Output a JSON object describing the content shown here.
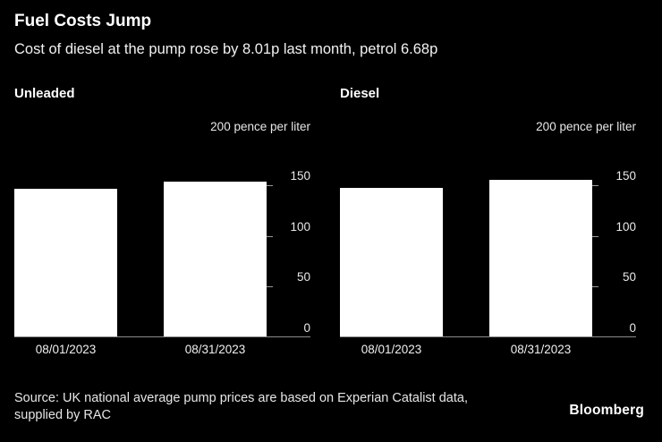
{
  "header": {
    "title": "Fuel Costs Jump",
    "subtitle": "Cost of diesel at the pump rose by 8.01p last month, petrol 6.68p"
  },
  "chart_data": [
    {
      "type": "bar",
      "title": "Unleaded",
      "categories": [
        "08/01/2023",
        "08/31/2023"
      ],
      "values": [
        146.0,
        152.7
      ],
      "unit_label": "200 pence per liter",
      "ylabel": "pence per liter",
      "ylim": [
        0,
        200
      ],
      "yticks": [
        0,
        50,
        100,
        150,
        200
      ],
      "bar_color": "#ffffff",
      "legend": "none",
      "grid": "off"
    },
    {
      "type": "bar",
      "title": "Diesel",
      "categories": [
        "08/01/2023",
        "08/31/2023"
      ],
      "values": [
        146.9,
        154.9
      ],
      "unit_label": "200 pence per liter",
      "ylabel": "pence per liter",
      "ylim": [
        0,
        200
      ],
      "yticks": [
        0,
        50,
        100,
        150,
        200
      ],
      "bar_color": "#ffffff",
      "legend": "none",
      "grid": "off"
    }
  ],
  "footer": {
    "source_line1": "Source: UK national average pump prices are based on Experian Catalist data,",
    "source_line2": "supplied by RAC",
    "brand": "Bloomberg"
  },
  "colors": {
    "background": "#000000",
    "bar": "#ffffff",
    "text": "#ffffff",
    "muted": "#e6e6e6",
    "axis_line": "#8a8a8a"
  }
}
